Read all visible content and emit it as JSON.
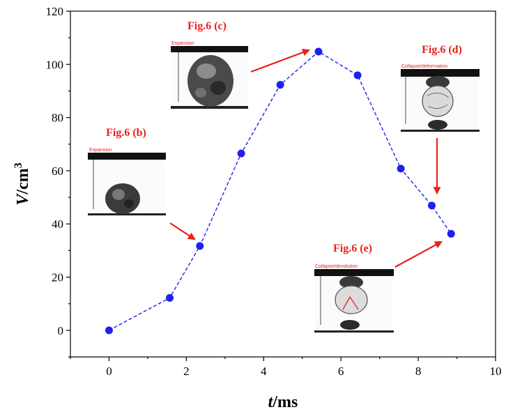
{
  "chart_data": {
    "type": "line",
    "xlabel": {
      "italic": "t",
      "rest": "/ms"
    },
    "ylabel": {
      "italic": "V",
      "rest": "/cm",
      "sup": "3"
    },
    "xlim": [
      -1,
      10
    ],
    "ylim": [
      -10,
      120
    ],
    "x_ticks": [
      0,
      2,
      4,
      6,
      8,
      10
    ],
    "y_ticks": [
      0,
      20,
      40,
      60,
      80,
      100,
      120
    ],
    "grid": false,
    "series": [
      {
        "color": "#1f1ff0",
        "line_style": "dashed",
        "points": [
          {
            "x": 0,
            "y": 0
          },
          {
            "x": 1.57,
            "y": 12.2
          },
          {
            "x": 2.35,
            "y": 31.7
          },
          {
            "x": 3.42,
            "y": 66.5
          },
          {
            "x": 4.43,
            "y": 92.3
          },
          {
            "x": 5.42,
            "y": 104.8
          },
          {
            "x": 6.43,
            "y": 95.9
          },
          {
            "x": 7.55,
            "y": 60.8
          },
          {
            "x": 8.35,
            "y": 46.9
          },
          {
            "x": 8.85,
            "y": 36.3
          }
        ]
      }
    ],
    "annotations": [
      {
        "label": "Fig.6 (b)",
        "caption": "Expansion",
        "image": "specimen-photo-expansion-early"
      },
      {
        "label": "Fig.6 (c)",
        "caption": "Expansion",
        "image": "specimen-photo-expansion-peak"
      },
      {
        "label": "Fig.6 (d)",
        "caption": "Collapse/deformation",
        "image": "specimen-photo-collapse-deformation"
      },
      {
        "label": "Fig.6 (e)",
        "caption": "Collapse/devolution",
        "image": "specimen-photo-collapse-devolution"
      }
    ],
    "colors": {
      "annotation": "#e8201e",
      "series": "#1f1ff0"
    }
  }
}
